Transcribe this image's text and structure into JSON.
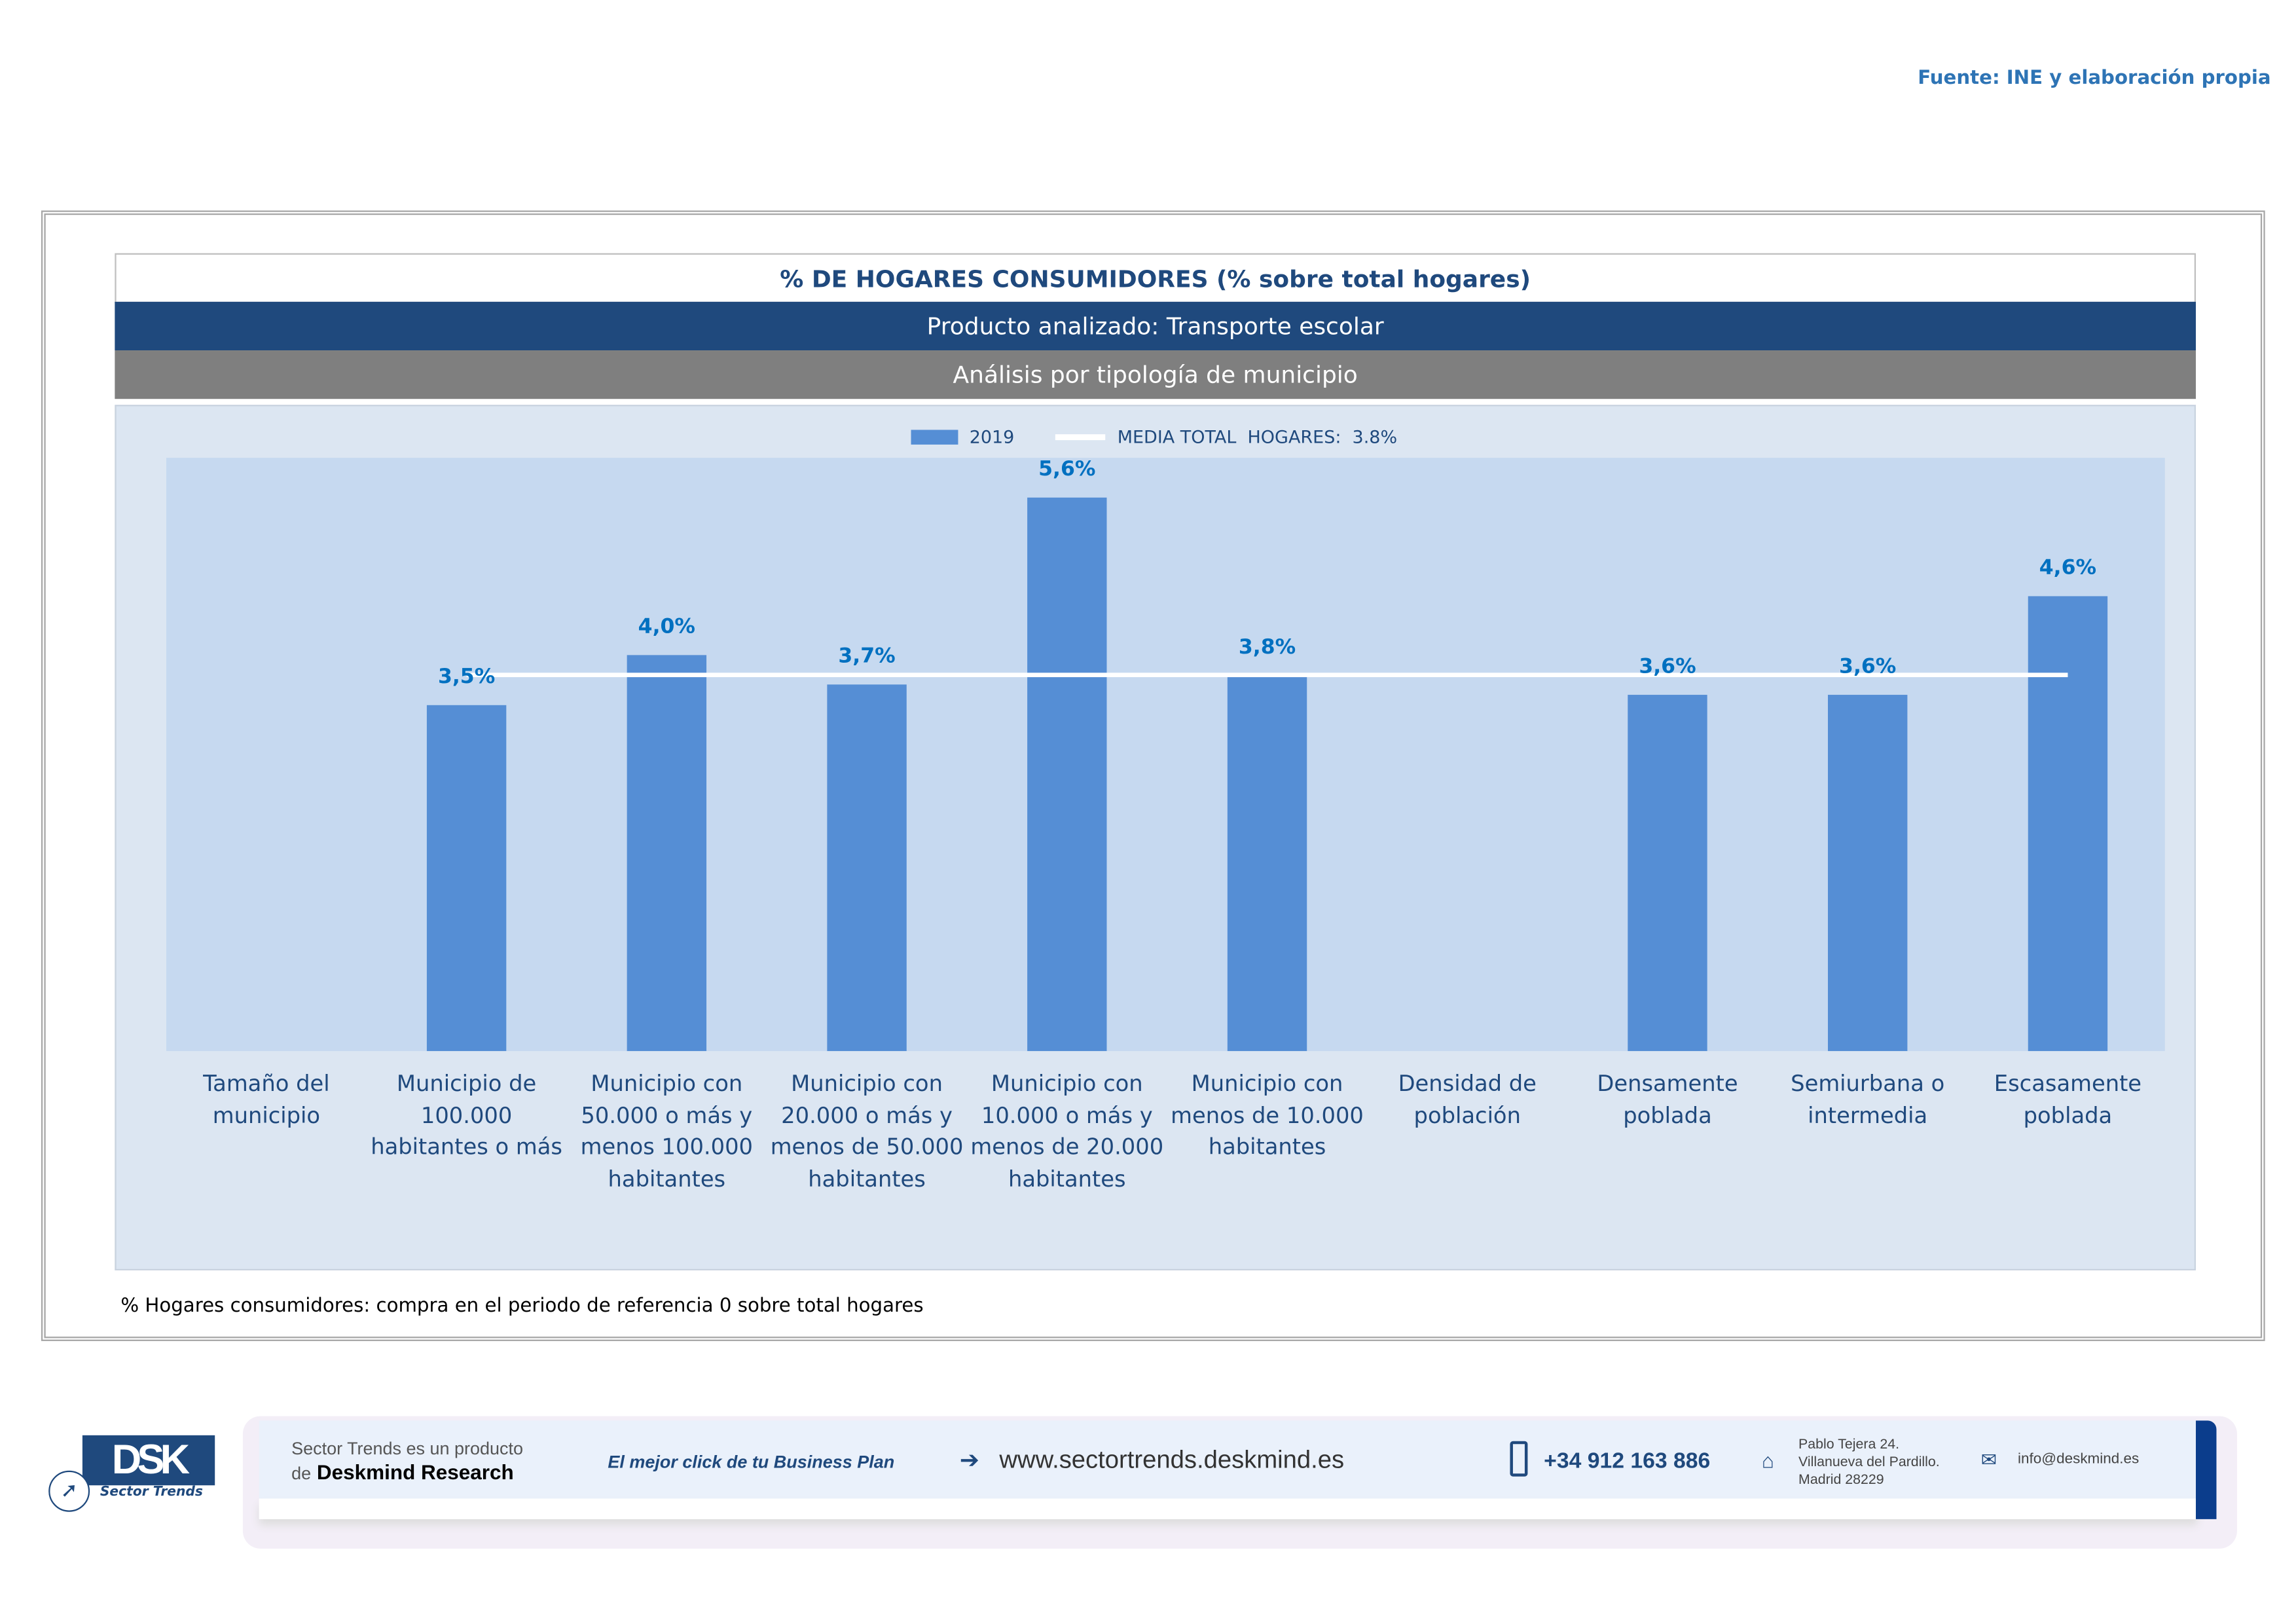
{
  "source": "Fuente: INE y elaboración propia",
  "header": {
    "title": "% DE HOGARES CONSUMIDORES (% sobre total hogares)",
    "product": "Producto analizado: Transporte escolar",
    "analysis": "Análisis por tipología de municipio"
  },
  "chart_data": {
    "type": "bar",
    "title": "% DE HOGARES CONSUMIDORES (% sobre total hogares)",
    "categories": [
      "Tamaño del municipio",
      "Municipio de 100.000 habitantes o más",
      "Municipio con 50.000 o más y menos 100.000 habitantes",
      "Municipio con 20.000 o más y menos de 50.000 habitantes",
      "Municipio con 10.000 o más y menos de 20.000 habitantes",
      "Municipio con menos de 10.000 habitantes",
      "Densidad de población",
      "Densamente poblada",
      "Semiurbana o intermedia",
      "Escasamente poblada"
    ],
    "series": [
      {
        "name": "2019",
        "values": [
          null,
          3.5,
          4.0,
          3.7,
          5.6,
          3.8,
          null,
          3.6,
          3.6,
          4.6
        ],
        "color": "#558ed5"
      },
      {
        "name": "MEDIA TOTAL  HOGARES:  3.8%",
        "type": "line",
        "value": 3.8,
        "color": "#ffffff"
      }
    ],
    "data_labels": [
      "",
      "3,5%",
      "4,0%",
      "3,7%",
      "5,6%",
      "3,8%",
      "",
      "3,6%",
      "3,6%",
      "4,6%"
    ],
    "legend": [
      "2019",
      "MEDIA TOTAL  HOGARES:  3.8%"
    ],
    "legend_position": "top",
    "ylim": [
      0,
      6
    ],
    "xlabel": "",
    "ylabel": "",
    "grid": false
  },
  "footnote": "% Hogares consumidores: compra en el periodo de referencia 0 sobre total hogares",
  "footer": {
    "logo_text": "DSK",
    "logo_sub": "Sector Trends",
    "product_line1": "Sector Trends es un producto",
    "product_line2_prefix": "de",
    "product_line2_brand": "Deskmind Research",
    "slogan": "El mejor click de tu Business Plan",
    "website": "www.sectortrends.deskmind.es",
    "phone": "+34 912 163 886",
    "address_line1": "Pablo Tejera 24.",
    "address_line2": "Villanueva del Pardillo.",
    "address_line3": "Madrid 28229",
    "email": "info@deskmind.es"
  }
}
